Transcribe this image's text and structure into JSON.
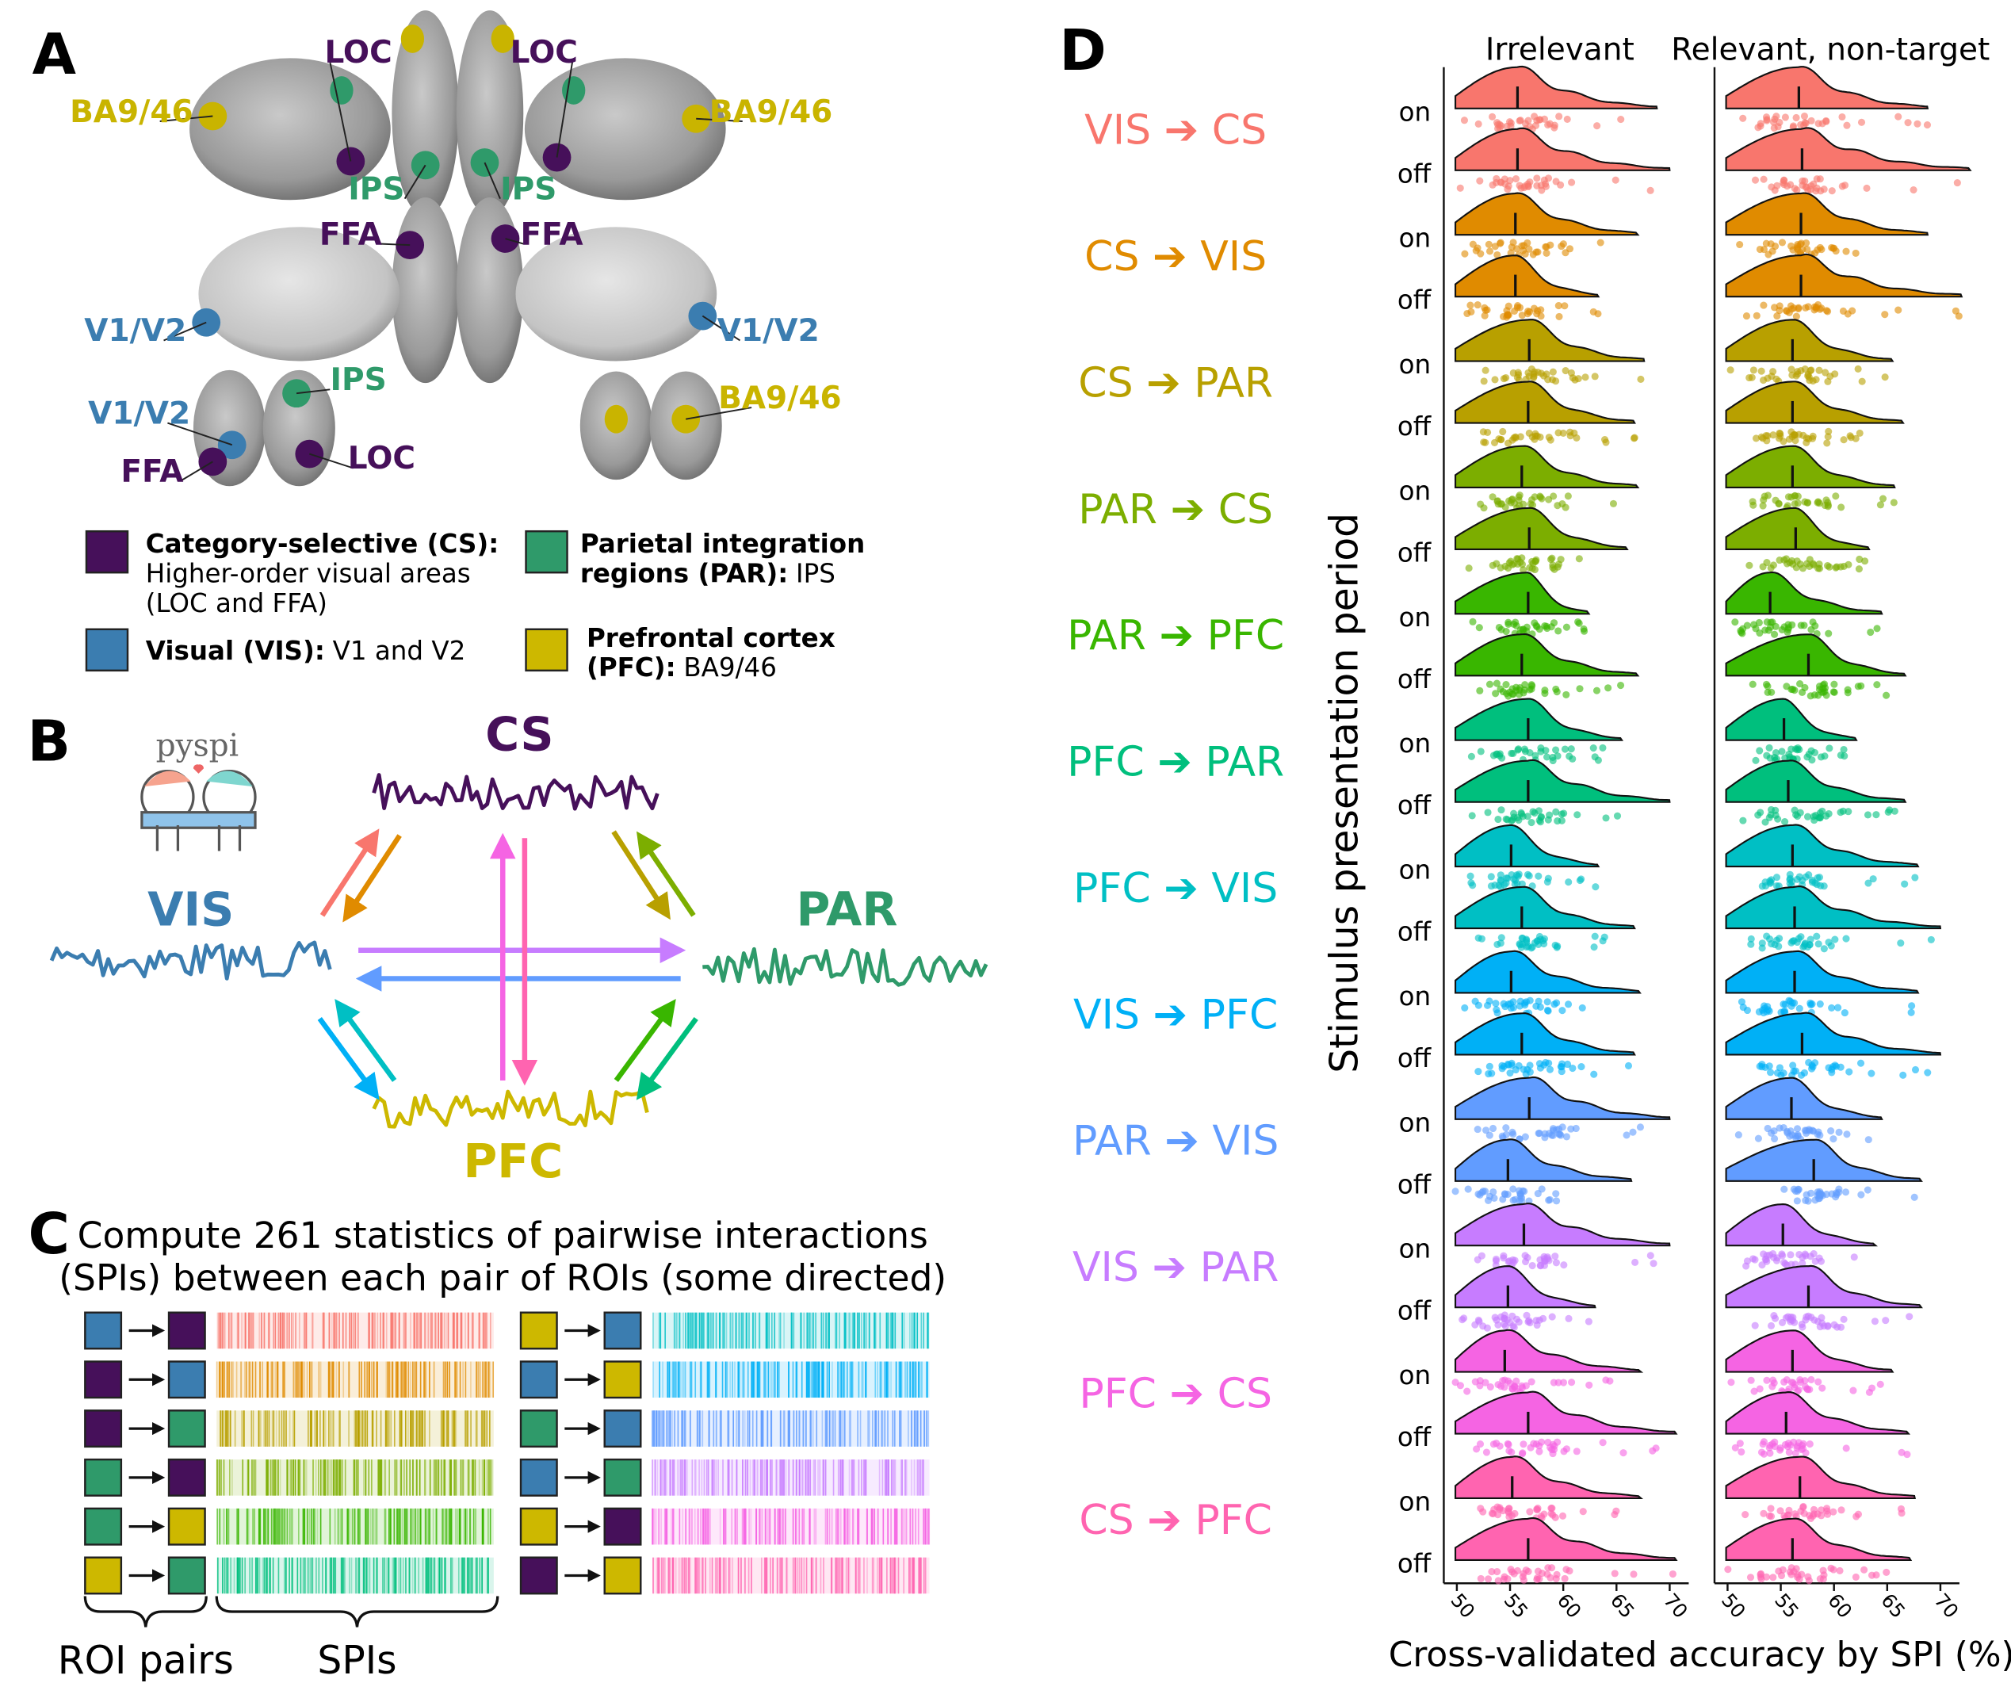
{
  "panel_labels": [
    "A",
    "B",
    "C",
    "D"
  ],
  "region_colors": {
    "CS": "#46105a",
    "VIS": "#3b7db0",
    "PAR": "#2f9a6a",
    "PFC": "#cdb800"
  },
  "panel_a": {
    "brain_labels": [
      {
        "text": "LOC",
        "color": "#46105a"
      },
      {
        "text": "LOC",
        "color": "#46105a"
      },
      {
        "text": "BA9/46",
        "color": "#c9b400"
      },
      {
        "text": "BA9/46",
        "color": "#c9b400"
      },
      {
        "text": "IPS",
        "color": "#2f9a6a"
      },
      {
        "text": "IPS",
        "color": "#2f9a6a"
      },
      {
        "text": "FFA",
        "color": "#46105a"
      },
      {
        "text": "FFA",
        "color": "#46105a"
      },
      {
        "text": "V1/V2",
        "color": "#3b7db0"
      },
      {
        "text": "V1/V2",
        "color": "#3b7db0"
      },
      {
        "text": "IPS",
        "color": "#2f9a6a"
      },
      {
        "text": "V1/V2",
        "color": "#3b7db0"
      },
      {
        "text": "FFA",
        "color": "#46105a"
      },
      {
        "text": "LOC",
        "color": "#46105a"
      },
      {
        "text": "BA9/46",
        "color": "#c9b400"
      }
    ],
    "legend": [
      {
        "color": "#46105a",
        "lines": [
          {
            "bold": "Category-selective (CS):"
          },
          {
            "text": "Higher-order visual areas"
          },
          {
            "text": "(LOC and FFA)"
          }
        ]
      },
      {
        "color": "#3b7db0",
        "lines": [
          {
            "bold": "Visual (VIS):",
            "text": "V1 and V2"
          }
        ]
      },
      {
        "color": "#2f9a6a",
        "lines": [
          {
            "bold": "Parietal integration"
          },
          {
            "bold": "regions (PAR):",
            "text": "IPS"
          }
        ]
      },
      {
        "color": "#cdb800",
        "lines": [
          {
            "bold": "Prefrontal cortex"
          },
          {
            "bold": "(PFC):",
            "text": "BA9/46"
          }
        ]
      }
    ]
  },
  "panel_b": {
    "logo": "pyspi",
    "nodes": [
      "CS",
      "VIS",
      "PAR",
      "PFC"
    ]
  },
  "panel_c": {
    "title_lines": [
      "Compute 261 statistics of pairwise interactions",
      "(SPIs) between each pair of ROIs (some directed)"
    ],
    "pairs": [
      [
        "VIS",
        "CS"
      ],
      [
        "CS",
        "VIS"
      ],
      [
        "CS",
        "PAR"
      ],
      [
        "PAR",
        "CS"
      ],
      [
        "PAR",
        "PFC"
      ],
      [
        "PFC",
        "PAR"
      ],
      [
        "PFC",
        "VIS"
      ],
      [
        "VIS",
        "PFC"
      ],
      [
        "PAR",
        "VIS"
      ],
      [
        "VIS",
        "PAR"
      ],
      [
        "PFC",
        "CS"
      ],
      [
        "CS",
        "PFC"
      ]
    ],
    "brace_labels": [
      "ROI pairs",
      "SPIs"
    ]
  },
  "chart_data": {
    "type": "ridgeline",
    "categories": [
      "VIS ➔ CS",
      "CS ➔ VIS",
      "CS ➔ PAR",
      "PAR ➔ CS",
      "PAR ➔ PFC",
      "PFC ➔ PAR",
      "PFC ➔ VIS",
      "VIS ➔ PFC",
      "PAR ➔ VIS",
      "VIS ➔ PAR",
      "PFC ➔ CS",
      "CS ➔ PFC"
    ],
    "colors": [
      "#f8766d",
      "#e08b00",
      "#b8a000",
      "#7cae00",
      "#39b600",
      "#00bf7d",
      "#00bfc4",
      "#00b0f6",
      "#619cff",
      "#c77cff",
      "#f564e3",
      "#ff64b0"
    ],
    "periods": [
      "on",
      "off"
    ],
    "series": [
      {
        "name": "Irrelevant",
        "medians": [
          [
            55.7,
            55.7
          ],
          [
            55.5,
            55.5
          ],
          [
            56.8,
            56.7
          ],
          [
            56.1,
            56.8
          ],
          [
            56.7,
            56.1
          ],
          [
            56.7,
            56.7
          ],
          [
            55.1,
            56.1
          ],
          [
            55.1,
            56.1
          ],
          [
            56.8,
            54.8
          ],
          [
            56.3,
            54.8
          ],
          [
            54.5,
            56.7
          ],
          [
            55.2,
            56.7
          ]
        ],
        "maxima": [
          [
            68.8,
            70
          ],
          [
            67,
            63.3
          ],
          [
            67.6,
            66.7
          ],
          [
            67,
            66
          ],
          [
            62.4,
            67
          ],
          [
            65.5,
            70
          ],
          [
            63.3,
            66.7
          ],
          [
            67.2,
            66.7
          ],
          [
            70,
            66.4
          ],
          [
            70,
            63
          ],
          [
            67.3,
            70.6
          ],
          [
            67.3,
            70.6
          ]
        ]
      },
      {
        "name": "Relevant, non-target",
        "medians": [
          [
            56.7,
            57
          ],
          [
            56.9,
            56.9
          ],
          [
            56.1,
            56.1
          ],
          [
            56.1,
            56.4
          ],
          [
            54,
            57.6
          ],
          [
            55.3,
            55.7
          ],
          [
            56.1,
            56.3
          ],
          [
            56.3,
            57
          ],
          [
            56,
            58.1
          ],
          [
            55.2,
            57.6
          ],
          [
            56.1,
            55.5
          ],
          [
            56.8,
            56.1
          ]
        ],
        "maxima": [
          [
            68.8,
            72.8
          ],
          [
            68.8,
            72
          ],
          [
            65.5,
            66.5
          ],
          [
            65.7,
            63.3
          ],
          [
            64.5,
            66.7
          ],
          [
            62.1,
            66.7
          ],
          [
            67.9,
            70
          ],
          [
            67.9,
            70
          ],
          [
            64.5,
            68.2
          ],
          [
            63.9,
            68.2
          ],
          [
            65.5,
            67
          ],
          [
            67.6,
            67.2
          ]
        ]
      }
    ],
    "xlim": [
      49.5,
      73
    ],
    "xticks": [
      50,
      55,
      60,
      65,
      70
    ],
    "xlabel": "Cross-validated accuracy by SPI (%)",
    "ylabel": "Stimulus presentation period"
  }
}
